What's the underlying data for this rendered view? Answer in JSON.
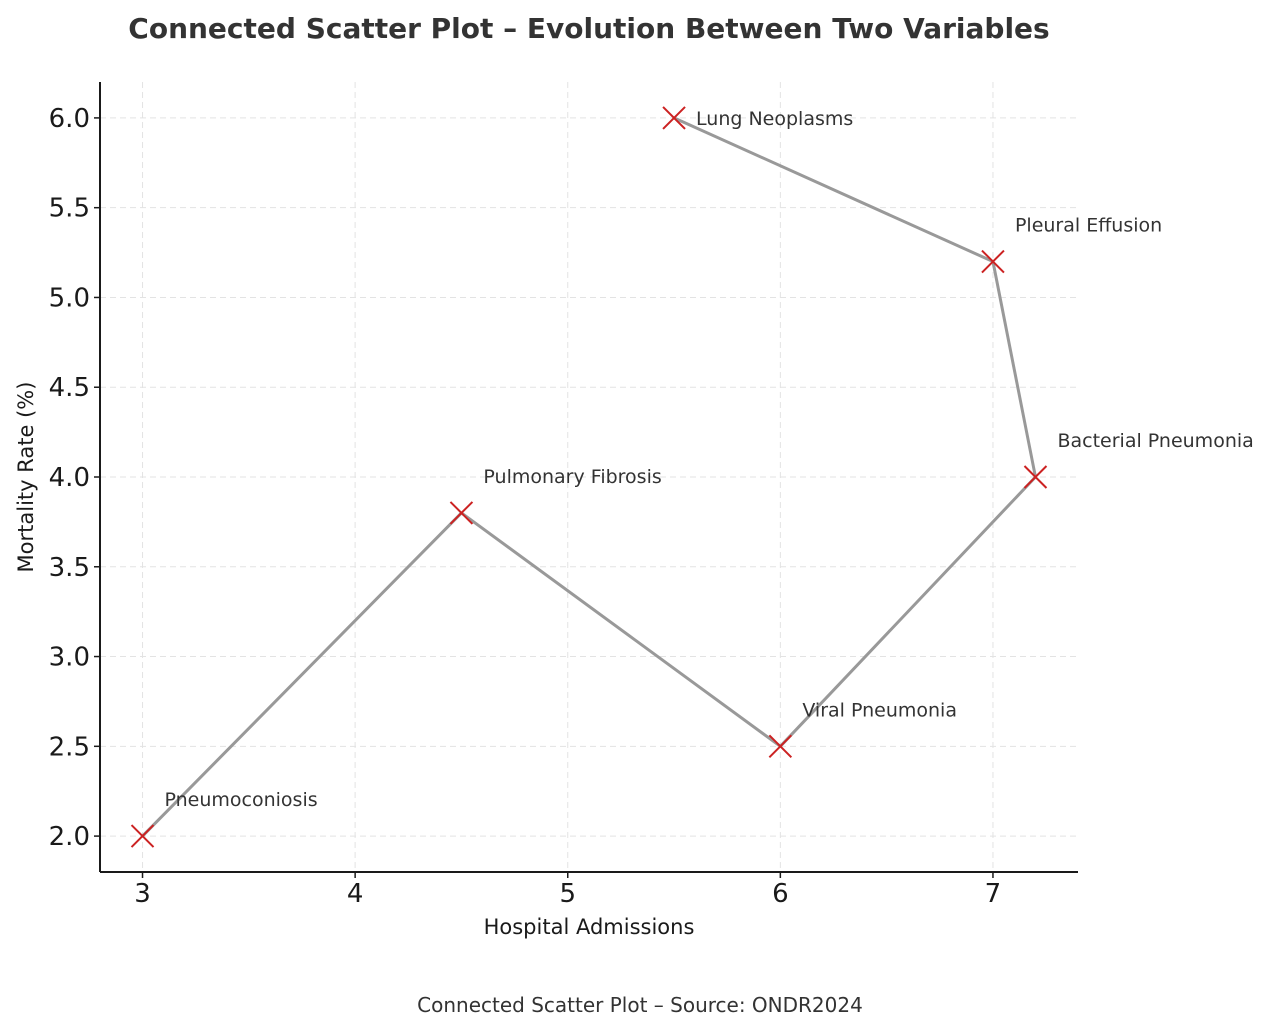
{
  "chart_data": {
    "type": "scatter",
    "title": "Connected Scatter Plot – Evolution Between Two Variables",
    "subtitle": "",
    "xlabel": "Hospital Admissions",
    "ylabel": "Mortality Rate (%)",
    "caption": "Connected Scatter Plot – Source: ONDR2024",
    "xlim": [
      2.8,
      7.4
    ],
    "ylim": [
      1.8,
      6.2
    ],
    "x_ticks": [
      3,
      4,
      5,
      6,
      7
    ],
    "y_ticks": [
      2.0,
      2.5,
      3.0,
      3.5,
      4.0,
      4.5,
      5.0,
      5.5,
      6.0
    ],
    "grid": true,
    "grid_style": "dashed",
    "line_color": "#999999",
    "marker_color": "#cc2222",
    "marker": "x",
    "points": [
      {
        "label": "Pneumoconiosis",
        "x": 3.0,
        "y": 2.0
      },
      {
        "label": "Pulmonary Fibrosis",
        "x": 4.5,
        "y": 3.8
      },
      {
        "label": "Viral Pneumonia",
        "x": 6.0,
        "y": 2.5
      },
      {
        "label": "Bacterial Pneumonia",
        "x": 7.2,
        "y": 4.0
      },
      {
        "label": "Pleural Effusion",
        "x": 7.0,
        "y": 5.2
      },
      {
        "label": "Lung Neoplasms",
        "x": 5.5,
        "y": 6.0
      }
    ]
  }
}
